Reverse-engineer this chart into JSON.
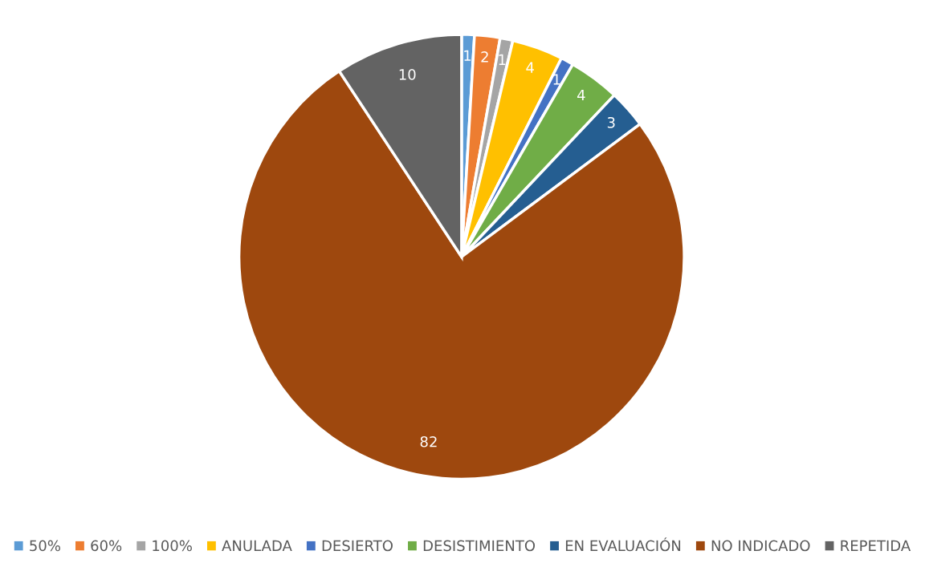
{
  "chart_data": {
    "type": "pie",
    "categories": [
      "50%",
      "60%",
      "100%",
      "ANULADA",
      "DESIERTO",
      "DESISTIMIENTO",
      "EN EVALUACIÓN",
      "NO INDICADO",
      "REPETIDA"
    ],
    "values": [
      1,
      2,
      1,
      4,
      1,
      4,
      3,
      82,
      10
    ],
    "colors": [
      "#5b9bd5",
      "#ed7d31",
      "#a5a5a5",
      "#ffc000",
      "#4472c4",
      "#70ad47",
      "#255e91",
      "#9e480e",
      "#636363"
    ],
    "data_labels": true,
    "legend": "bottom"
  }
}
